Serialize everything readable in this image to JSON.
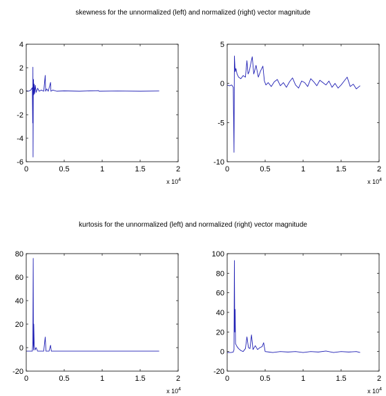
{
  "titles": {
    "skewness": "skewness for the unnormalized (left) and normalized (right) vector magnitude",
    "kurtosis": "kurtosis for the unnormalized (left) and normalized (right) vector magnitude"
  },
  "line_color": "#1f1fb4",
  "chart_data": [
    {
      "id": "skew-left",
      "type": "line",
      "title": "",
      "xlabel": "",
      "ylabel": "",
      "xlim": [
        0,
        20000
      ],
      "ylim": [
        -6,
        4
      ],
      "x_ticks": [
        0,
        5000,
        10000,
        15000,
        20000
      ],
      "x_tick_labels": [
        "0",
        "0.5",
        "1",
        "1.5",
        "2"
      ],
      "y_ticks": [
        -6,
        -4,
        -2,
        0,
        2,
        4
      ],
      "y_tick_labels": [
        "-6",
        "-4",
        "-2",
        "0",
        "2",
        "4"
      ],
      "x_multiplier": "x 10",
      "x_multiplier_exp": "4",
      "grid": false,
      "series": [
        {
          "values": [
            [
              0,
              0.05
            ],
            [
              300,
              0
            ],
            [
              600,
              0.1
            ],
            [
              800,
              0.3
            ],
            [
              850,
              -2.7
            ],
            [
              880,
              2.05
            ],
            [
              900,
              -5.6
            ],
            [
              930,
              0.2
            ],
            [
              960,
              1.0
            ],
            [
              1000,
              -0.3
            ],
            [
              1050,
              0.6
            ],
            [
              1100,
              -0.2
            ],
            [
              1200,
              0.5
            ],
            [
              1300,
              -0.1
            ],
            [
              1500,
              0.25
            ],
            [
              1700,
              0
            ],
            [
              2000,
              0.1
            ],
            [
              2300,
              0
            ],
            [
              2500,
              1.35
            ],
            [
              2550,
              0
            ],
            [
              2700,
              0.2
            ],
            [
              2900,
              0
            ],
            [
              3200,
              0.75
            ],
            [
              3250,
              0
            ],
            [
              3500,
              0.1
            ],
            [
              4000,
              0
            ],
            [
              5000,
              0.03
            ],
            [
              7000,
              0
            ],
            [
              9500,
              0.05
            ],
            [
              9600,
              0
            ],
            [
              12000,
              0.02
            ],
            [
              15000,
              0
            ],
            [
              17500,
              0.02
            ]
          ]
        }
      ]
    },
    {
      "id": "skew-right",
      "type": "line",
      "title": "",
      "xlabel": "",
      "ylabel": "",
      "xlim": [
        0,
        20000
      ],
      "ylim": [
        -10,
        5
      ],
      "x_ticks": [
        0,
        5000,
        10000,
        15000,
        20000
      ],
      "x_tick_labels": [
        "0",
        "0.5",
        "1",
        "1.5",
        "2"
      ],
      "y_ticks": [
        -10,
        -5,
        0,
        5
      ],
      "y_tick_labels": [
        "-10",
        "-5",
        "0",
        "5"
      ],
      "x_multiplier": "x 10",
      "x_multiplier_exp": "4",
      "grid": false,
      "series": [
        {
          "values": [
            [
              0,
              -0.2
            ],
            [
              300,
              -0.3
            ],
            [
              600,
              -0.2
            ],
            [
              800,
              -0.5
            ],
            [
              900,
              -8.8
            ],
            [
              950,
              3.5
            ],
            [
              1050,
              1.5
            ],
            [
              1150,
              1.9
            ],
            [
              1300,
              1.2
            ],
            [
              1500,
              0.8
            ],
            [
              1800,
              0.6
            ],
            [
              2100,
              1.0
            ],
            [
              2400,
              0.8
            ],
            [
              2600,
              2.9
            ],
            [
              2750,
              1.2
            ],
            [
              2900,
              1.5
            ],
            [
              3100,
              2.5
            ],
            [
              3300,
              3.4
            ],
            [
              3500,
              1.2
            ],
            [
              3800,
              2.3
            ],
            [
              4100,
              0.8
            ],
            [
              4400,
              1.6
            ],
            [
              4700,
              2.2
            ],
            [
              4900,
              0.3
            ],
            [
              5100,
              -0.2
            ],
            [
              5400,
              0.1
            ],
            [
              5800,
              -0.4
            ],
            [
              6200,
              0.2
            ],
            [
              6600,
              0.5
            ],
            [
              7000,
              -0.3
            ],
            [
              7400,
              0.1
            ],
            [
              7800,
              -0.5
            ],
            [
              8200,
              0.2
            ],
            [
              8600,
              0.7
            ],
            [
              9000,
              -0.2
            ],
            [
              9400,
              -0.6
            ],
            [
              9800,
              0.3
            ],
            [
              10200,
              0.1
            ],
            [
              10600,
              -0.4
            ],
            [
              11000,
              0.6
            ],
            [
              11400,
              0.2
            ],
            [
              11800,
              -0.3
            ],
            [
              12200,
              0.4
            ],
            [
              12600,
              0.1
            ],
            [
              13000,
              -0.2
            ],
            [
              13400,
              0.3
            ],
            [
              13800,
              -0.5
            ],
            [
              14200,
              0.0
            ],
            [
              14600,
              -0.6
            ],
            [
              15000,
              -0.2
            ],
            [
              15400,
              0.3
            ],
            [
              15800,
              0.8
            ],
            [
              16200,
              -0.4
            ],
            [
              16600,
              -0.1
            ],
            [
              17000,
              -0.7
            ],
            [
              17500,
              -0.3
            ]
          ]
        }
      ]
    },
    {
      "id": "kurt-left",
      "type": "line",
      "title": "",
      "xlabel": "",
      "ylabel": "",
      "xlim": [
        0,
        20000
      ],
      "ylim": [
        -20,
        80
      ],
      "x_ticks": [
        0,
        5000,
        10000,
        15000,
        20000
      ],
      "x_tick_labels": [
        "0",
        "0.5",
        "1",
        "1.5",
        "2"
      ],
      "y_ticks": [
        -20,
        0,
        20,
        40,
        60,
        80
      ],
      "y_tick_labels": [
        "-20",
        "0",
        "20",
        "40",
        "60",
        "80"
      ],
      "x_multiplier": "x 10",
      "x_multiplier_exp": "4",
      "grid": false,
      "series": [
        {
          "values": [
            [
              0,
              -3
            ],
            [
              800,
              -3
            ],
            [
              870,
              5
            ],
            [
              920,
              76
            ],
            [
              950,
              -2
            ],
            [
              990,
              20
            ],
            [
              1050,
              2
            ],
            [
              1150,
              -2
            ],
            [
              1300,
              0
            ],
            [
              1500,
              -3
            ],
            [
              2300,
              -3
            ],
            [
              2500,
              9
            ],
            [
              2600,
              -3
            ],
            [
              3000,
              -3
            ],
            [
              3200,
              2
            ],
            [
              3300,
              -3
            ],
            [
              17500,
              -3
            ]
          ]
        }
      ]
    },
    {
      "id": "kurt-right",
      "type": "line",
      "title": "",
      "xlabel": "",
      "ylabel": "",
      "xlim": [
        0,
        20000
      ],
      "ylim": [
        -20,
        100
      ],
      "x_ticks": [
        0,
        5000,
        10000,
        15000,
        20000
      ],
      "x_tick_labels": [
        "0",
        "0.5",
        "1",
        "1.5",
        "2"
      ],
      "y_ticks": [
        -20,
        0,
        20,
        40,
        60,
        80,
        100
      ],
      "y_tick_labels": [
        "-20",
        "0",
        "20",
        "40",
        "60",
        "80",
        "100"
      ],
      "x_multiplier": "x 10",
      "x_multiplier_exp": "4",
      "grid": false,
      "series": [
        {
          "values": [
            [
              0,
              -1
            ],
            [
              500,
              -1
            ],
            [
              800,
              -0.5
            ],
            [
              900,
              2
            ],
            [
              950,
              93
            ],
            [
              1000,
              20
            ],
            [
              1050,
              43
            ],
            [
              1100,
              8
            ],
            [
              1300,
              5
            ],
            [
              1500,
              3
            ],
            [
              1800,
              1
            ],
            [
              2100,
              0
            ],
            [
              2400,
              3
            ],
            [
              2600,
              15
            ],
            [
              2800,
              4
            ],
            [
              3000,
              3
            ],
            [
              3200,
              17
            ],
            [
              3400,
              2
            ],
            [
              3700,
              6
            ],
            [
              4000,
              2
            ],
            [
              4300,
              4
            ],
            [
              4600,
              5
            ],
            [
              4800,
              9
            ],
            [
              5000,
              0
            ],
            [
              5500,
              -0.5
            ],
            [
              6000,
              -1
            ],
            [
              7000,
              0
            ],
            [
              8000,
              -0.5
            ],
            [
              9000,
              0
            ],
            [
              10000,
              -1
            ],
            [
              11000,
              0
            ],
            [
              12000,
              -0.5
            ],
            [
              13000,
              0.5
            ],
            [
              14000,
              -1
            ],
            [
              15000,
              0
            ],
            [
              16000,
              -0.5
            ],
            [
              17000,
              0
            ],
            [
              17500,
              -1
            ]
          ]
        }
      ]
    }
  ]
}
